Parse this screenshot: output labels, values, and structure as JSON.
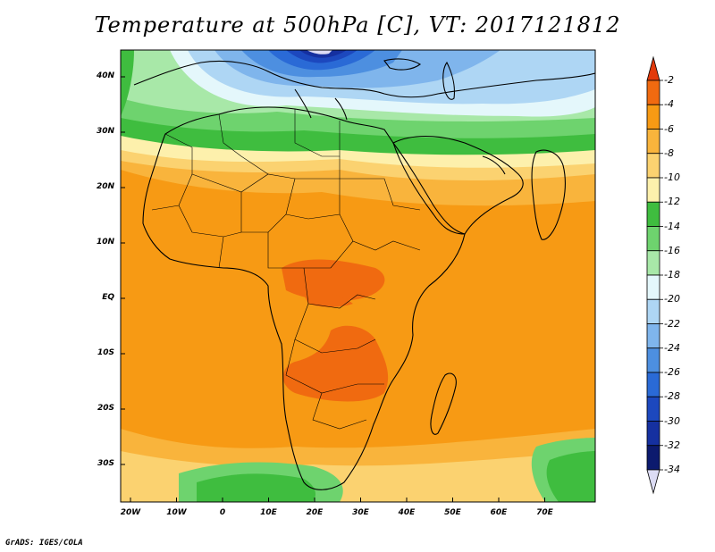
{
  "title": "Temperature at 500hPa [C], VT: 2017121812",
  "credit": "GrADS: IGES/COLA",
  "lat_labels": [
    {
      "value": 40,
      "text": "40N"
    },
    {
      "value": 30,
      "text": "30N"
    },
    {
      "value": 20,
      "text": "20N"
    },
    {
      "value": 10,
      "text": "10N"
    },
    {
      "value": 0,
      "text": "EQ"
    },
    {
      "value": -10,
      "text": "10S"
    },
    {
      "value": -20,
      "text": "20S"
    },
    {
      "value": -30,
      "text": "30S"
    }
  ],
  "lon_labels": [
    {
      "value": -20,
      "text": "20W"
    },
    {
      "value": -10,
      "text": "10W"
    },
    {
      "value": 0,
      "text": "0"
    },
    {
      "value": 10,
      "text": "10E"
    },
    {
      "value": 20,
      "text": "20E"
    },
    {
      "value": 30,
      "text": "30E"
    },
    {
      "value": 40,
      "text": "40E"
    },
    {
      "value": 50,
      "text": "50E"
    },
    {
      "value": 60,
      "text": "60E"
    },
    {
      "value": 70,
      "text": "70E"
    }
  ],
  "colorbar": {
    "levels": [
      "-2",
      "-4",
      "-6",
      "-8",
      "-10",
      "-12",
      "-14",
      "-16",
      "-18",
      "-20",
      "-22",
      "-24",
      "-26",
      "-28",
      "-30",
      "-32",
      "-34"
    ],
    "colors": [
      "#e23a0c",
      "#f06a10",
      "#f79a14",
      "#f9b43c",
      "#fbd270",
      "#fdf0ac",
      "#3fbd3f",
      "#6ed36e",
      "#a8e8a8",
      "#e4f7fb",
      "#aed6f4",
      "#7fb5ec",
      "#4d8fe0",
      "#2a6ad6",
      "#1c48be",
      "#1530a0",
      "#0c1a6e",
      "#dcdcf4"
    ]
  }
}
